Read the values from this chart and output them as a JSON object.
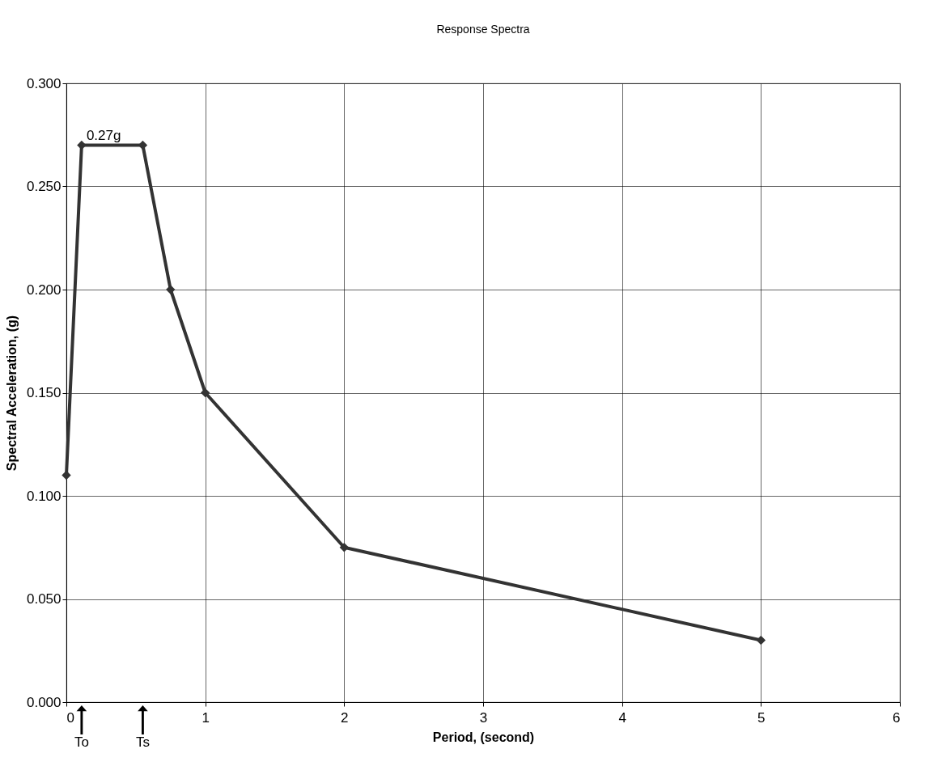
{
  "chart_data": {
    "type": "line",
    "title": "Response Spectra",
    "xlabel": "Period, (second)",
    "ylabel": "Spectral Acceleration, (g)",
    "x": [
      0,
      0.11,
      0.55,
      0.75,
      1,
      2,
      5
    ],
    "series": [
      {
        "color": "#333333",
        "values": [
          0.11,
          0.27,
          0.27,
          0.2,
          0.15,
          0.075,
          0.03
        ]
      }
    ],
    "marker": "diamond",
    "line_style": "solid",
    "xlim": [
      0,
      6
    ],
    "xticks": [
      0,
      1,
      2,
      3,
      4,
      5,
      6
    ],
    "ylim": [
      0,
      0.3
    ],
    "yticks": [
      {
        "value": 0,
        "label": "0.000"
      },
      {
        "value": 0.05,
        "label": "0.050"
      },
      {
        "value": 0.1,
        "label": "0.100"
      },
      {
        "value": 0.15,
        "label": "0.150"
      },
      {
        "value": 0.2,
        "label": "0.200"
      },
      {
        "value": 0.25,
        "label": "0.250"
      },
      {
        "value": 0.3,
        "label": "0.300"
      }
    ],
    "grid": true,
    "annotations": [
      {
        "text": "0.27g",
        "x": 0.11,
        "y": 0.27
      },
      "To",
      "Ts"
    ]
  }
}
